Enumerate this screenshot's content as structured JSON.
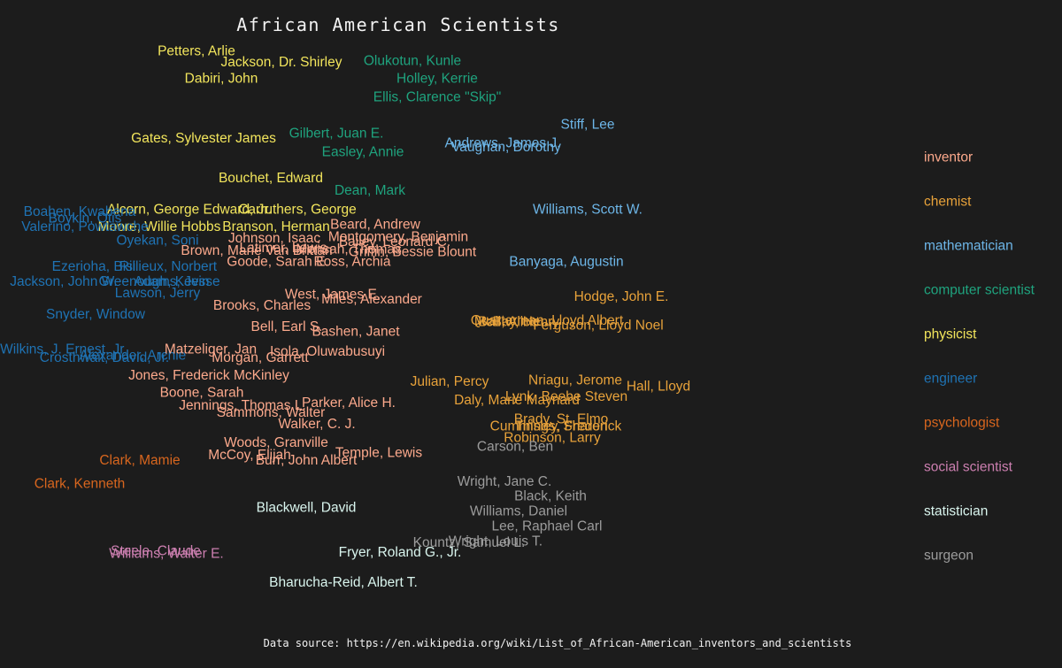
{
  "chart_data": {
    "type": "scatter",
    "title": "African American Scientists",
    "caption": "Data source: https://en.wikipedia.org/wiki/List_of_African-American_inventors_and_scientists",
    "background": "#1c1c1c",
    "legend": {
      "placement": "right",
      "entries": [
        {
          "name": "inventor",
          "color": "#fca98c"
        },
        {
          "name": "chemist",
          "color": "#e8a23a"
        },
        {
          "name": "mathematician",
          "color": "#6db6e8"
        },
        {
          "name": "computer scientist",
          "color": "#1fa37e"
        },
        {
          "name": "physicist",
          "color": "#f2e55c"
        },
        {
          "name": "engineer",
          "color": "#1f73b4"
        },
        {
          "name": "psychologist",
          "color": "#d8661e"
        },
        {
          "name": "social scientist",
          "color": "#cc7fb0"
        },
        {
          "name": "statistician",
          "color": "#d9f5ee"
        },
        {
          "name": "surgeon",
          "color": "#9c9c9c"
        }
      ]
    },
    "x_range": [
      0,
      1
    ],
    "y_range": [
      0,
      1
    ],
    "points": [
      {
        "name": "Petters, Arlie",
        "category": "physicist",
        "x": 0.222,
        "y": 0.918
      },
      {
        "name": "Jackson, Dr. Shirley",
        "category": "physicist",
        "x": 0.318,
        "y": 0.9
      },
      {
        "name": "Dabiri, John",
        "category": "physicist",
        "x": 0.25,
        "y": 0.874
      },
      {
        "name": "Gates, Sylvester James",
        "category": "physicist",
        "x": 0.23,
        "y": 0.778
      },
      {
        "name": "Bouchet, Edward",
        "category": "physicist",
        "x": 0.306,
        "y": 0.714
      },
      {
        "name": "Alcorn, George Edward, Jr.",
        "category": "physicist",
        "x": 0.214,
        "y": 0.664
      },
      {
        "name": "Carruthers, George",
        "category": "physicist",
        "x": 0.336,
        "y": 0.664
      },
      {
        "name": "Moore, Willie Hobbs",
        "category": "physicist",
        "x": 0.18,
        "y": 0.636
      },
      {
        "name": "Branson, Herman",
        "category": "physicist",
        "x": 0.312,
        "y": 0.636
      },
      {
        "name": "Olukotun, Kunle",
        "category": "computer scientist",
        "x": 0.466,
        "y": 0.902
      },
      {
        "name": "Holley, Kerrie",
        "category": "computer scientist",
        "x": 0.494,
        "y": 0.874
      },
      {
        "name": "Ellis, Clarence \"Skip\"",
        "category": "computer scientist",
        "x": 0.494,
        "y": 0.844
      },
      {
        "name": "Gilbert, Juan E.",
        "category": "computer scientist",
        "x": 0.38,
        "y": 0.786
      },
      {
        "name": "Easley, Annie",
        "category": "computer scientist",
        "x": 0.41,
        "y": 0.756
      },
      {
        "name": "Dean, Mark",
        "category": "computer scientist",
        "x": 0.418,
        "y": 0.694
      },
      {
        "name": "Stiff, Lee",
        "category": "mathematician",
        "x": 0.664,
        "y": 0.8
      },
      {
        "name": "Andrews, James J.",
        "category": "mathematician",
        "x": 0.568,
        "y": 0.77
      },
      {
        "name": "Vaughan, Dorothy",
        "category": "mathematician",
        "x": 0.572,
        "y": 0.764
      },
      {
        "name": "Williams, Scott W.",
        "category": "mathematician",
        "x": 0.664,
        "y": 0.664
      },
      {
        "name": "Banyaga, Augustin",
        "category": "mathematician",
        "x": 0.64,
        "y": 0.58
      },
      {
        "name": "Boahen, Kwabena",
        "category": "engineer",
        "x": 0.09,
        "y": 0.66
      },
      {
        "name": "Boykin, Otis",
        "category": "engineer",
        "x": 0.096,
        "y": 0.65
      },
      {
        "name": "Valerino, Powtawche",
        "category": "engineer",
        "x": 0.096,
        "y": 0.636
      },
      {
        "name": "Oyekan, Soni",
        "category": "engineer",
        "x": 0.178,
        "y": 0.614
      },
      {
        "name": "Ezerioha, Bisi",
        "category": "engineer",
        "x": 0.106,
        "y": 0.572
      },
      {
        "name": "Rillieux, Norbert",
        "category": "engineer",
        "x": 0.19,
        "y": 0.572
      },
      {
        "name": "Jackson, John W.",
        "category": "engineer",
        "x": 0.072,
        "y": 0.548
      },
      {
        "name": "Greenough, Kevin",
        "category": "engineer",
        "x": 0.174,
        "y": 0.548
      },
      {
        "name": "Adams, Jesse",
        "category": "engineer",
        "x": 0.2,
        "y": 0.548
      },
      {
        "name": "Lawson, Jerry",
        "category": "engineer",
        "x": 0.178,
        "y": 0.53
      },
      {
        "name": "Snyder, Window",
        "category": "engineer",
        "x": 0.108,
        "y": 0.496
      },
      {
        "name": "Wilkins, J. Ernest, Jr.",
        "category": "engineer",
        "x": 0.072,
        "y": 0.44
      },
      {
        "name": "Crosthwait, David, Jr.",
        "category": "engineer",
        "x": 0.118,
        "y": 0.426
      },
      {
        "name": "Alexander, Archie",
        "category": "engineer",
        "x": 0.15,
        "y": 0.43
      },
      {
        "name": "Beard, Andrew",
        "category": "inventor",
        "x": 0.424,
        "y": 0.64
      },
      {
        "name": "Johnson, Isaac",
        "category": "inventor",
        "x": 0.31,
        "y": 0.618
      },
      {
        "name": "Montgomery, Benjamin",
        "category": "inventor",
        "x": 0.45,
        "y": 0.62
      },
      {
        "name": "Bailey, Leonard C.",
        "category": "inventor",
        "x": 0.446,
        "y": 0.612
      },
      {
        "name": "Brown, Marie Van Brittan",
        "category": "inventor",
        "x": 0.29,
        "y": 0.598
      },
      {
        "name": "Latimer, Lewis",
        "category": "inventor",
        "x": 0.32,
        "y": 0.602
      },
      {
        "name": "Mensah, Thomas",
        "category": "inventor",
        "x": 0.394,
        "y": 0.6
      },
      {
        "name": "Griffin, Bessie Blount",
        "category": "inventor",
        "x": 0.466,
        "y": 0.596
      },
      {
        "name": "Goode, Sarah E.",
        "category": "inventor",
        "x": 0.314,
        "y": 0.58
      },
      {
        "name": "Ross, Archia",
        "category": "inventor",
        "x": 0.398,
        "y": 0.58
      },
      {
        "name": "West, James E.",
        "category": "inventor",
        "x": 0.376,
        "y": 0.528
      },
      {
        "name": "Miles, Alexander",
        "category": "inventor",
        "x": 0.42,
        "y": 0.52
      },
      {
        "name": "Brooks, Charles",
        "category": "inventor",
        "x": 0.296,
        "y": 0.51
      },
      {
        "name": "Bell, Earl S.",
        "category": "inventor",
        "x": 0.324,
        "y": 0.476
      },
      {
        "name": "Bashen, Janet",
        "category": "inventor",
        "x": 0.402,
        "y": 0.468
      },
      {
        "name": "Matzeliger, Jan",
        "category": "inventor",
        "x": 0.238,
        "y": 0.44
      },
      {
        "name": "Isola, Oluwabusuyi",
        "category": "inventor",
        "x": 0.37,
        "y": 0.436
      },
      {
        "name": "Morgan, Garrett",
        "category": "inventor",
        "x": 0.294,
        "y": 0.426
      },
      {
        "name": "Jones, Frederick McKinley",
        "category": "inventor",
        "x": 0.236,
        "y": 0.398
      },
      {
        "name": "Boone, Sarah",
        "category": "inventor",
        "x": 0.228,
        "y": 0.37
      },
      {
        "name": "Parker, Alice H.",
        "category": "inventor",
        "x": 0.394,
        "y": 0.354
      },
      {
        "name": "Jennings, Thomas L.",
        "category": "inventor",
        "x": 0.274,
        "y": 0.35
      },
      {
        "name": "Sammons, Walter",
        "category": "inventor",
        "x": 0.306,
        "y": 0.338
      },
      {
        "name": "Walker, C. J.",
        "category": "inventor",
        "x": 0.358,
        "y": 0.32
      },
      {
        "name": "Woods, Granville",
        "category": "inventor",
        "x": 0.312,
        "y": 0.29
      },
      {
        "name": "Temple, Lewis",
        "category": "inventor",
        "x": 0.428,
        "y": 0.274
      },
      {
        "name": "McCoy, Elijah",
        "category": "inventor",
        "x": 0.282,
        "y": 0.27
      },
      {
        "name": "Burr, John Albert",
        "category": "inventor",
        "x": 0.346,
        "y": 0.262
      },
      {
        "name": "Hodge, John E.",
        "category": "chemist",
        "x": 0.702,
        "y": 0.524
      },
      {
        "name": "Quarterman, Lloyd Albert",
        "category": "chemist",
        "x": 0.618,
        "y": 0.486
      },
      {
        "name": "Ball, Alice",
        "category": "chemist",
        "x": 0.574,
        "y": 0.484
      },
      {
        "name": "McBay, Henry",
        "category": "chemist",
        "x": 0.584,
        "y": 0.484
      },
      {
        "name": "Ferguson, Lloyd Noel",
        "category": "chemist",
        "x": 0.676,
        "y": 0.478
      },
      {
        "name": "Julian, Percy",
        "category": "chemist",
        "x": 0.508,
        "y": 0.388
      },
      {
        "name": "Nriagu, Jerome",
        "category": "chemist",
        "x": 0.65,
        "y": 0.39
      },
      {
        "name": "Hall, Lloyd",
        "category": "chemist",
        "x": 0.744,
        "y": 0.38
      },
      {
        "name": "Lynk, Beebe Steven",
        "category": "chemist",
        "x": 0.64,
        "y": 0.364
      },
      {
        "name": "Daly, Marie Maynard",
        "category": "chemist",
        "x": 0.584,
        "y": 0.358
      },
      {
        "name": "Brady, St. Elmo",
        "category": "chemist",
        "x": 0.634,
        "y": 0.328
      },
      {
        "name": "Cummings, Sharon",
        "category": "chemist",
        "x": 0.62,
        "y": 0.316
      },
      {
        "name": "Tinsley, Frederick",
        "category": "chemist",
        "x": 0.642,
        "y": 0.316
      },
      {
        "name": "Robinson, Larry",
        "category": "chemist",
        "x": 0.624,
        "y": 0.298
      },
      {
        "name": "Carson, Ben",
        "category": "surgeon",
        "x": 0.582,
        "y": 0.284
      },
      {
        "name": "Wright, Jane C.",
        "category": "surgeon",
        "x": 0.57,
        "y": 0.228
      },
      {
        "name": "Black, Keith",
        "category": "surgeon",
        "x": 0.622,
        "y": 0.204
      },
      {
        "name": "Williams, Daniel",
        "category": "surgeon",
        "x": 0.586,
        "y": 0.18
      },
      {
        "name": "Lee, Raphael Carl",
        "category": "surgeon",
        "x": 0.618,
        "y": 0.156
      },
      {
        "name": "Kountz, Samuel L.",
        "category": "surgeon",
        "x": 0.53,
        "y": 0.13
      },
      {
        "name": "Wright, Louis T.",
        "category": "surgeon",
        "x": 0.56,
        "y": 0.132
      },
      {
        "name": "Clark, Mamie",
        "category": "psychologist",
        "x": 0.158,
        "y": 0.262
      },
      {
        "name": "Clark, Kenneth",
        "category": "psychologist",
        "x": 0.09,
        "y": 0.224
      },
      {
        "name": "Blackwell, David",
        "category": "statistician",
        "x": 0.346,
        "y": 0.186
      },
      {
        "name": "Fryer, Roland G., Jr.",
        "category": "statistician",
        "x": 0.452,
        "y": 0.114
      },
      {
        "name": "Bharucha-Reid, Albert T.",
        "category": "statistician",
        "x": 0.388,
        "y": 0.066
      },
      {
        "name": "Steele, Claude",
        "category": "social scientist",
        "x": 0.176,
        "y": 0.116
      },
      {
        "name": "Williams, Walter E.",
        "category": "social scientist",
        "x": 0.188,
        "y": 0.112
      }
    ]
  }
}
